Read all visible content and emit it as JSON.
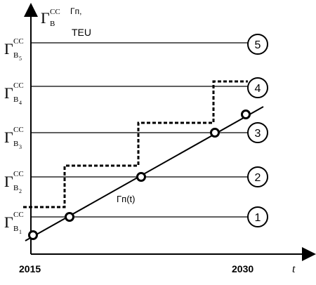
{
  "axes": {
    "y_label_main": "Γ",
    "y_label_sub": "В",
    "y_label_sup": "CC",
    "y_label_second": "Γп,",
    "y_unit": "TEU",
    "x_label": "t",
    "x_start_label": "2015",
    "x_end_label": "2030"
  },
  "capacity_levels": [
    {
      "main": "Γ",
      "sub": "В",
      "subsub": "1",
      "sup": "CC",
      "marker": "1"
    },
    {
      "main": "Γ",
      "sub": "В",
      "subsub": "2",
      "sup": "CC",
      "marker": "2"
    },
    {
      "main": "Γ",
      "sub": "В",
      "subsub": "3",
      "sup": "CC",
      "marker": "3"
    },
    {
      "main": "Γ",
      "sub": "В",
      "subsub": "4",
      "sup": "CC",
      "marker": "4"
    },
    {
      "main": "Γ",
      "sub": "В",
      "subsub": "5",
      "sup": "CC",
      "marker": "5"
    }
  ],
  "demand_line_label": "Γп(t)",
  "colors": {
    "line": "#000000",
    "background": "#ffffff"
  }
}
